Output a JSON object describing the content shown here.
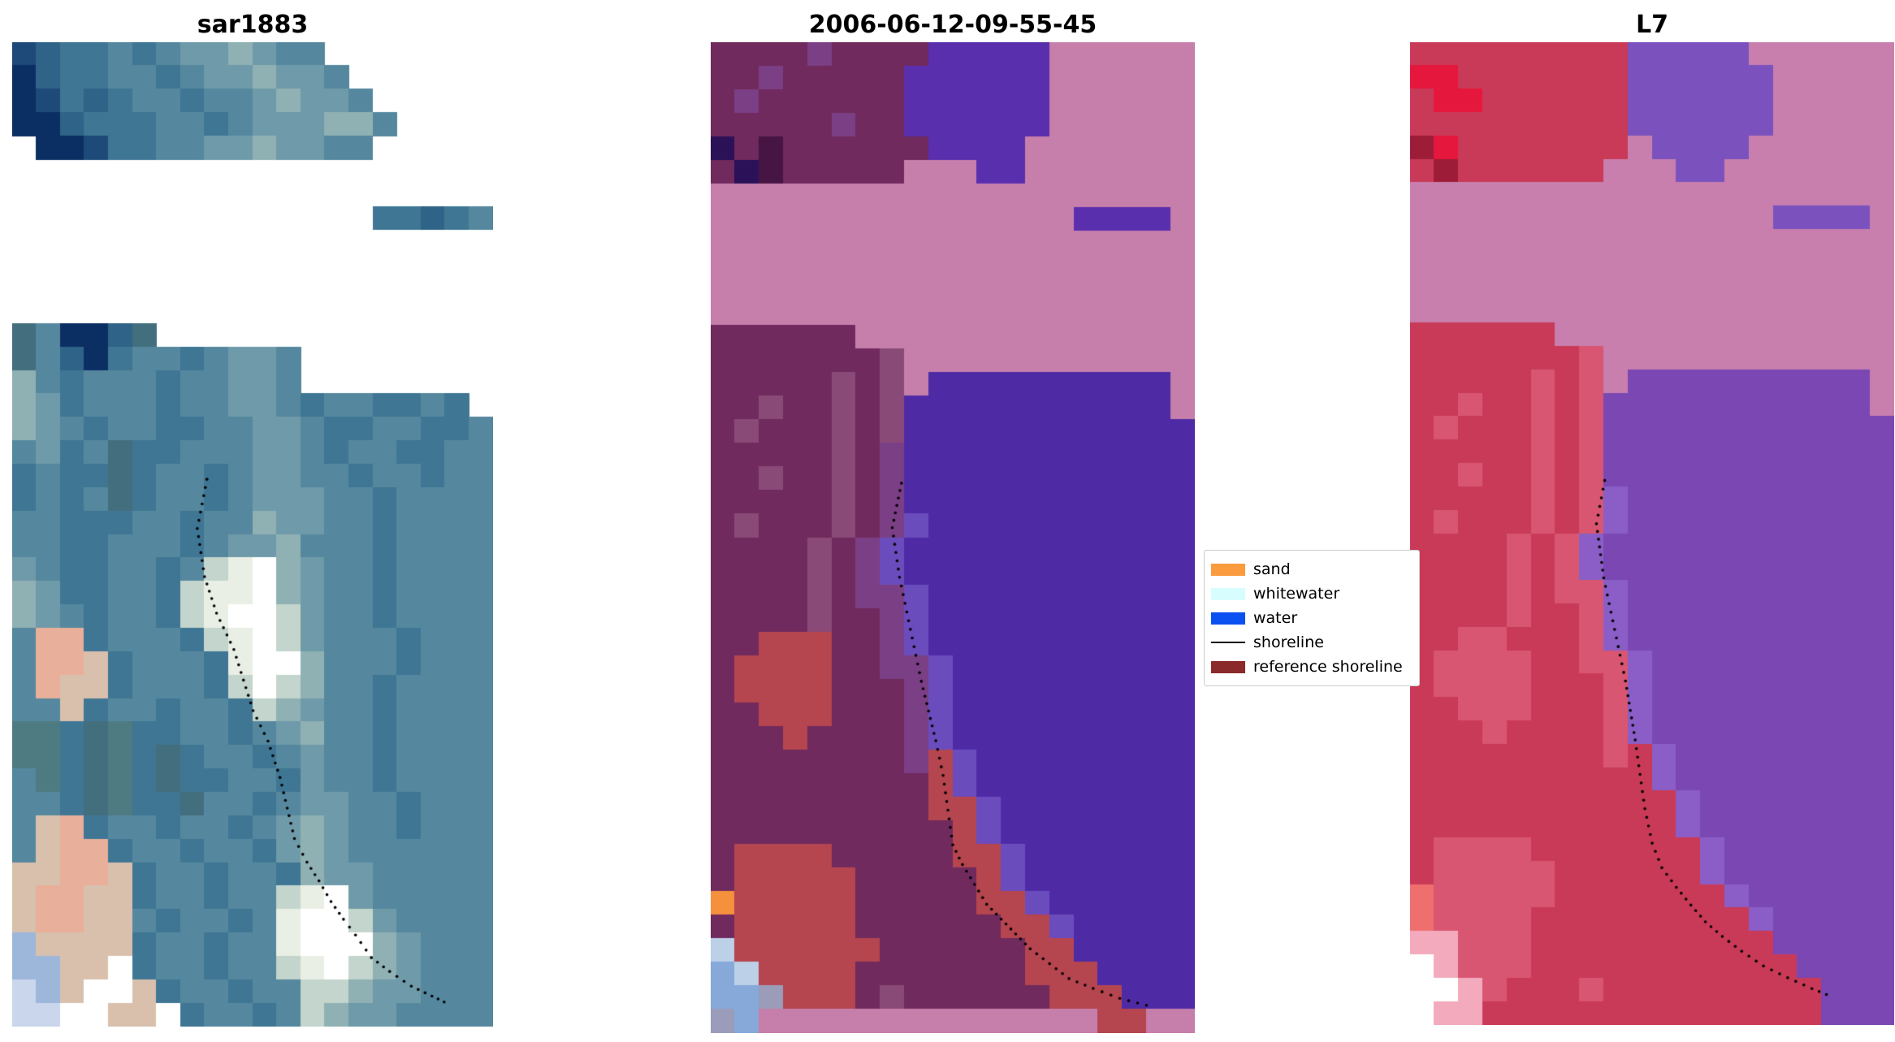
{
  "figure": {
    "background": "#ffffff"
  },
  "panels": [
    {
      "title": "sar1883",
      "kind": "satellite-rgb-image",
      "palette": {
        "a": "#0c2f63",
        "b": "#1d4a78",
        "c": "#2f6387",
        "d": "#3f7694",
        "e": "#55889e",
        "f": "#6f9aa9",
        "g": "#90b1b3",
        "h": "#c3d5cc",
        "i": "#e9efe4",
        "j": "#ffffff",
        "k": "#d9c0ad",
        "l": "#e8af9b",
        "m": "#c9d6ec",
        "n": "#9db7da",
        "o": "#4e7a82",
        "p": "#436e7e"
      },
      "grid_rows": [
        "bcddedeffgfee.......",
        "acddeedeffgffe......",
        "abdcdeedeefgffe.....",
        "aacdddeedefffgge....",
        ".aabddeeffgffee.....",
        "....................",
        "....................",
        "...............ddcde",
        "....................",
        "....................",
        "....................",
        "....................",
        "peaacp..............",
        "pecadeedeffe........",
        "gedeeedeeffe........",
        "gfdeeedeeffedeedded.",
        "gfedeeddeeffeddeedde",
        "efdepddeeeffedeeddee",
        "deddpdeedeffeedeedee",
        "dedepdeedefffeedeeee",
        "eedddeedeegffeedeeee",
        "eeddeeedeffgeeedeeee",
        "feddeedehijgfeedeeee",
        "gfddeedhiijgfeedeeee",
        "gfedeedhijjhfeedeeee",
        "elldeeedhijhfeeedeee",
        "ellkdeeedijjgeeedeee",
        "elkkdeeedhjhgeedeeee",
        "eekdeedeedhgfeedeeee",
        "oodpoddeedefgeedeeee",
        "oodpodpdeedefeedeeee",
        "eodpodpddeedfeedeeee",
        "eedpoddpeedeffeedeee",
        "ekldeedeedefgfeedeee",
        "eklldeedeedfgfeeeeee",
        "kkllkdeedeedgffeeeee",
        "kllkkdeedeehijfeeeee",
        "kllkkedeedeijjhfeeee",
        "nkkkkdeedeeijjjgfeee",
        "nnkkjdeedeehijhgfeee",
        "mnkjjkdeedeehhgffeee",
        "mmjjkkjdeedehgffeeee"
      ],
      "shoreline_color": "#000000",
      "shoreline": [
        [
          0.405,
          0.444
        ],
        [
          0.385,
          0.494
        ],
        [
          0.4,
          0.543
        ],
        [
          0.425,
          0.58
        ],
        [
          0.461,
          0.617
        ],
        [
          0.481,
          0.648
        ],
        [
          0.501,
          0.679
        ],
        [
          0.532,
          0.71
        ],
        [
          0.557,
          0.747
        ],
        [
          0.572,
          0.778
        ],
        [
          0.587,
          0.809
        ],
        [
          0.613,
          0.833
        ],
        [
          0.638,
          0.852
        ],
        [
          0.663,
          0.873
        ],
        [
          0.689,
          0.891
        ],
        [
          0.714,
          0.907
        ],
        [
          0.747,
          0.93
        ],
        [
          0.785,
          0.944
        ],
        [
          0.83,
          0.959
        ],
        [
          0.873,
          0.969
        ],
        [
          0.911,
          0.978
        ]
      ]
    },
    {
      "title": "2006-06-12-09-55-45",
      "kind": "classified-image",
      "palette": {
        "M": "#702a5e",
        "m": "#8a4a78",
        "v": "#7b3f85",
        "D": "#471543",
        "N": "#2a1158",
        "P": "#c67fab",
        "B": "#5a2fae",
        "W": "#4e2ba5",
        "u": "#6b4cbd",
        "R": "#b5454f",
        "O": "#f5913d",
        "L": "#86a9d9",
        "l": "#bcd0e8",
        "g": "#9b9cba"
      },
      "grid_rows": [
        "MMMMvMMMMBBBBBPPPPPP",
        "MMvMMMMMBBBBBBPPPPPP",
        "MvMMMMMMBBBBBBPPPPPP",
        "MMMMMvMMBBBBBBPPPPPP",
        "NMDMMMMMMBBBBPPPPPPP",
        "MNDMMMMMPPPBBPPPPPPP",
        "PPPPPPPPPPPPPPPPPPPP",
        "PPPPPPPPPPPPPPPBBBBP",
        "PPPPPPPPPPPPPPPPPPPP",
        "PPPPPPPPPPPPPPPPPPPP",
        "PPPPPPPPPPPPPPPPPPPP",
        "PPPPPPPPPPPPPPPPPPPP",
        "MMMMMMPPPPPPPPPPPPPP",
        "MMMMMMMmPPPPPPPPPPPP",
        "MMMMMmMmPWWWWWWWWWWP",
        "MMmMMmMmWWWWWWWWWWWP",
        "MmMMMmMmWWWWWWWWWWWW",
        "MMMMMmMvWWWWWWWWWWWW",
        "MMmMMmMvWWWWWWWWWWWW",
        "MMMMMmMvWWWWWWWWWWWW",
        "MmMMMmMvuWWWWWWWWWWW",
        "MMMMmMvuWWWWWWWWWWWW",
        "MMMMmMvuWWWWWWWWWWWW",
        "MMMMmMvvuWWWWWWWWWWW",
        "MMMMmMMvuWWWWWWWWWWW",
        "MMRRRMMvuWWWWWWWWWWW",
        "MRRRRMMvvuWWWWWWWWWW",
        "MRRRRMMMvuWWWWWWWWWW",
        "MMRRRMMMvuWWWWWWWWWW",
        "MMMRMMMMvuWWWWWWWWWW",
        "MMMMMMMMvRuWWWWWWWWW",
        "MMMMMMMMMRuWWWWWWWWW",
        "MMMMMMMMMRRuWWWWWWWW",
        "MMMMMMMMMMRuWWWWWWWW",
        "MRRRRMMMMMRRuWWWWWWW",
        "MRRRRRMMMMMRuWWWWWWW",
        "ORRRRRMMMMMRRuWWWWWW",
        "MRRRRRMMMMMMRRuWWWWW",
        "lRRRRRRMMMMMMRRWWWWW",
        "LlRRRRMMMMMMMRRRWWWW",
        "LLgRRRMmMMMMMMRRRWWW",
        "gLPPPPPPPPPPPPPPRRPP"
      ],
      "shoreline_color": "#000000",
      "shoreline": [
        [
          0.394,
          0.445
        ],
        [
          0.375,
          0.49
        ],
        [
          0.39,
          0.54
        ],
        [
          0.405,
          0.575
        ],
        [
          0.42,
          0.61
        ],
        [
          0.435,
          0.645
        ],
        [
          0.45,
          0.675
        ],
        [
          0.465,
          0.705
        ],
        [
          0.48,
          0.74
        ],
        [
          0.49,
          0.775
        ],
        [
          0.5,
          0.81
        ],
        [
          0.52,
          0.83
        ],
        [
          0.545,
          0.85
        ],
        [
          0.57,
          0.87
        ],
        [
          0.6,
          0.885
        ],
        [
          0.63,
          0.9
        ],
        [
          0.66,
          0.915
        ],
        [
          0.7,
          0.93
        ],
        [
          0.74,
          0.945
        ],
        [
          0.79,
          0.955
        ],
        [
          0.845,
          0.965
        ],
        [
          0.9,
          0.972
        ],
        [
          0.917,
          0.975
        ]
      ]
    },
    {
      "title": "L7",
      "kind": "classified-image",
      "palette": {
        "C": "#c93a58",
        "c": "#d85672",
        "K": "#9d1c38",
        "E": "#e5173c",
        "P": "#c87fae",
        "V": "#7b52bd",
        "U": "#7a47b3",
        "u": "#8a5ec6",
        "q": "#f2aabc",
        "j": "#ffffff",
        "f": "#ef6e6e"
      },
      "grid_rows": [
        "CCCCCCCCCVVVVVPPPPPP",
        "EECCCCCCCVVVVVVPPPPP",
        "CEECCCCCCVVVVVVPPPPP",
        "CCCCCCCCCVVVVVVPPPPP",
        "KECCCCCCCPVVVVPPPPPP",
        "CKCCCCCCPPPVVPPPPPPP",
        "PPPPPPPPPPPPPPPPPPPP",
        "PPPPPPPPPPPPPPPVVVVP",
        "PPPPPPPPPPPPPPPPPPPP",
        "PPPPPPPPPPPPPPPPPPPP",
        "PPPPPPPPPPPPPPPPPPPP",
        "PPPPPPPPPPPPPPPPPPPP",
        "CCCCCCPPPPPPPPPPPPPP",
        "CCCCCCCcPPPPPPPPPPPP",
        "CCCCCcCcPUUUUUUUUUUP",
        "CCcCCcCcUUUUUUUUUUUP",
        "CcCCCcCcUUUUUUUUUUUU",
        "CCCCCcCcUUUUUUUUUUUU",
        "CCcCCcCcUUUUUUUUUUUU",
        "CCCCCcCcuUUUUUUUUUUU",
        "CcCCCcCcuUUUUUUUUUUU",
        "CCCCcCcuUUUUUUUUUUUU",
        "CCCCcCcuUUUUUUUUUUUU",
        "CCCCcCccuUUUUUUUUUUU",
        "CCCCcCCcuUUUUUUUUUUU",
        "CCccCCCcuUUUUUUUUUUU",
        "CccccCCccuUUUUUUUUUU",
        "CccccCCCcuUUUUUUUUUU",
        "CCcccCCCcuUUUUUUUUUU",
        "CCCcCCCCcuUUUUUUUUUU",
        "CCCCCCCCcCuUUUUUUUUU",
        "CCCCCCCCCCuUUUUUUUUU",
        "CCCCCCCCCCCuUUUUUUUU",
        "CCCCCCCCCCCuUUUUUUUU",
        "CccccCCCCCCCuUUUUUUU",
        "CcccccCCCCCCuUUUUUUU",
        "fcccccCCCCCCCuUUUUUU",
        "fccccCCCCCCCCCuUUUUU",
        "qqcccCCCCCCCCCCUUUUU",
        "jqcccCCCCCCCCCCCUUUU",
        "jjqcCCCcCCCCCCCCCUUU",
        "jqqCCCCCCCCCCCCCCUUU"
      ],
      "shoreline_color": "#000000",
      "shoreline": [
        [
          0.402,
          0.446
        ],
        [
          0.385,
          0.49
        ],
        [
          0.4,
          0.545
        ],
        [
          0.415,
          0.58
        ],
        [
          0.43,
          0.615
        ],
        [
          0.445,
          0.65
        ],
        [
          0.455,
          0.68
        ],
        [
          0.465,
          0.71
        ],
        [
          0.475,
          0.745
        ],
        [
          0.485,
          0.78
        ],
        [
          0.5,
          0.815
        ],
        [
          0.52,
          0.84
        ],
        [
          0.55,
          0.86
        ],
        [
          0.58,
          0.878
        ],
        [
          0.61,
          0.895
        ],
        [
          0.645,
          0.91
        ],
        [
          0.685,
          0.925
        ],
        [
          0.73,
          0.94
        ],
        [
          0.78,
          0.952
        ],
        [
          0.83,
          0.963
        ],
        [
          0.875,
          0.972
        ]
      ]
    }
  ],
  "legend": {
    "items": [
      {
        "label": "sand",
        "type": "patch",
        "color": "#fa9b3f"
      },
      {
        "label": "whitewater",
        "type": "patch",
        "color": "#d8fdff"
      },
      {
        "label": "water",
        "type": "patch",
        "color": "#0b50f0"
      },
      {
        "label": "shoreline",
        "type": "line",
        "color": "#000000"
      },
      {
        "label": "reference shoreline",
        "type": "patch",
        "color": "#8b2a2a"
      }
    ]
  }
}
